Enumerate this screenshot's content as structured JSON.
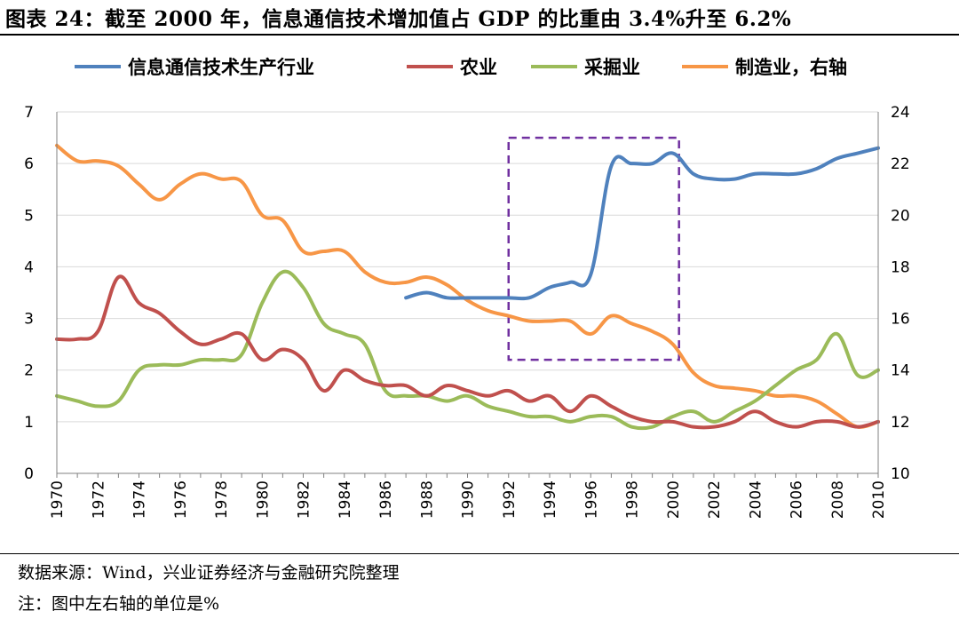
{
  "header": {
    "title": "图表 24：截至 2000 年，信息通信技术增加值占 GDP 的比重由 3.4%升至 6.2%"
  },
  "footer": {
    "source": "数据来源：Wind，兴业证券经济与金融研究院整理",
    "note": "注：图中左右轴的单位是%"
  },
  "colors": {
    "ict": "#4F81BD",
    "agri": "#C0504D",
    "mining": "#9BBB59",
    "manufacturing": "#F79646",
    "highlight_box": "#7030A0",
    "grid": "#D9D9D9",
    "axis": "#808080"
  },
  "chart_data": {
    "type": "line",
    "title": "截至 2000 年，信息通信技术增加值占 GDP 的比重由 3.4%升至 6.2%",
    "x": [
      1970,
      1971,
      1972,
      1973,
      1974,
      1975,
      1976,
      1977,
      1978,
      1979,
      1980,
      1981,
      1982,
      1983,
      1984,
      1985,
      1986,
      1987,
      1988,
      1989,
      1990,
      1991,
      1992,
      1993,
      1994,
      1995,
      1996,
      1997,
      1998,
      1999,
      2000,
      2001,
      2002,
      2003,
      2004,
      2005,
      2006,
      2007,
      2008,
      2009,
      2010
    ],
    "x_ticks": [
      "1970",
      "1972",
      "1974",
      "1976",
      "1978",
      "1980",
      "1982",
      "1984",
      "1986",
      "1988",
      "1990",
      "1992",
      "1994",
      "1996",
      "1998",
      "2000",
      "2002",
      "2004",
      "2006",
      "2008",
      "2010"
    ],
    "y_left": {
      "range": [
        0,
        7
      ],
      "ticks": [
        "0",
        "1",
        "2",
        "3",
        "4",
        "5",
        "6",
        "7"
      ]
    },
    "y_right": {
      "range": [
        10,
        24
      ],
      "ticks": [
        "10",
        "12",
        "14",
        "16",
        "18",
        "20",
        "22",
        "24"
      ]
    },
    "series": [
      {
        "name": "信息通信技术生产行业",
        "axis": "left",
        "color_key": "ict",
        "values": [
          null,
          null,
          null,
          null,
          null,
          null,
          null,
          null,
          null,
          null,
          null,
          null,
          null,
          null,
          null,
          null,
          null,
          3.4,
          3.5,
          3.4,
          3.4,
          3.4,
          3.4,
          3.4,
          3.6,
          3.7,
          3.85,
          5.95,
          6.0,
          6.0,
          6.2,
          5.8,
          5.7,
          5.7,
          5.8,
          5.8,
          5.8,
          5.9,
          6.1,
          6.2,
          6.3
        ]
      },
      {
        "name": "农业",
        "axis": "left",
        "color_key": "agri",
        "values": [
          2.6,
          2.6,
          2.75,
          3.8,
          3.3,
          3.1,
          2.75,
          2.5,
          2.6,
          2.7,
          2.2,
          2.4,
          2.2,
          1.6,
          2.0,
          1.8,
          1.7,
          1.7,
          1.5,
          1.7,
          1.6,
          1.5,
          1.6,
          1.4,
          1.5,
          1.2,
          1.5,
          1.3,
          1.1,
          1.0,
          1.0,
          0.9,
          0.9,
          1.0,
          1.2,
          1.0,
          0.9,
          1.0,
          1.0,
          0.9,
          1.0
        ]
      },
      {
        "name": "采掘业",
        "axis": "left",
        "color_key": "mining",
        "values": [
          1.5,
          1.4,
          1.3,
          1.4,
          2.0,
          2.1,
          2.1,
          2.2,
          2.2,
          2.3,
          3.3,
          3.9,
          3.6,
          2.9,
          2.7,
          2.5,
          1.6,
          1.5,
          1.5,
          1.4,
          1.5,
          1.3,
          1.2,
          1.1,
          1.1,
          1.0,
          1.1,
          1.1,
          0.9,
          0.9,
          1.1,
          1.2,
          1.0,
          1.2,
          1.4,
          1.7,
          2.0,
          2.2,
          2.7,
          1.9,
          2.0
        ]
      },
      {
        "name": "制造业，右轴",
        "axis": "right",
        "color_key": "manufacturing",
        "values": [
          22.7,
          22.1,
          22.1,
          21.9,
          21.2,
          20.6,
          21.2,
          21.6,
          21.4,
          21.3,
          20.0,
          19.8,
          18.6,
          18.6,
          18.6,
          17.8,
          17.4,
          17.4,
          17.6,
          17.3,
          16.7,
          16.3,
          16.1,
          15.9,
          15.9,
          15.9,
          15.4,
          16.1,
          15.8,
          15.5,
          15.0,
          13.9,
          13.4,
          13.3,
          13.2,
          13.0,
          13.0,
          12.8,
          12.3,
          11.8,
          12.0
        ]
      }
    ],
    "annotations": [
      {
        "type": "dashed-box",
        "x_range": [
          1992,
          2000.3
        ],
        "y_left_range": [
          2.2,
          6.5
        ]
      }
    ],
    "legend": "top",
    "grid": true
  }
}
